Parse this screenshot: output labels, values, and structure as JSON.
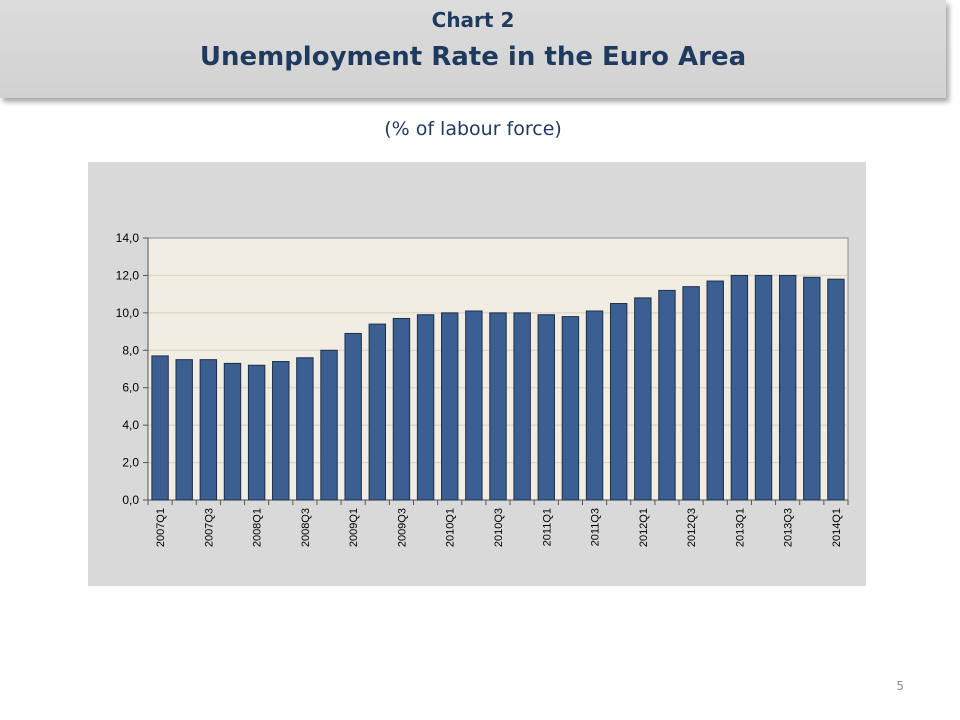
{
  "slide": {
    "title_line1": "Chart 2",
    "title_line2": "Unemployment Rate in the Euro Area",
    "subtitle": "(% of labour force)",
    "page_number": "5"
  },
  "colors": {
    "bar_fill": "#3b5f91",
    "bar_stroke": "#1f2f4a",
    "plot_bg": "#f1ede2",
    "chart_bg": "#d9d9d9",
    "title_text": "#1f3a5f"
  },
  "chart_data": {
    "type": "bar",
    "title": "",
    "xlabel": "",
    "ylabel": "",
    "ylim": [
      0,
      14
    ],
    "y_ticks": [
      "0,0",
      "2,0",
      "4,0",
      "6,0",
      "8,0",
      "10,0",
      "12,0",
      "14,0"
    ],
    "grid": true,
    "legend": "none",
    "categories": [
      "2007Q1",
      "2007Q2",
      "2007Q3",
      "2007Q4",
      "2008Q1",
      "2008Q2",
      "2008Q3",
      "2008Q4",
      "2009Q1",
      "2009Q2",
      "2009Q3",
      "2009Q4",
      "2010Q1",
      "2010Q2",
      "2010Q3",
      "2010Q4",
      "2011Q1",
      "2011Q2",
      "2011Q3",
      "2011Q4",
      "2012Q1",
      "2012Q2",
      "2012Q3",
      "2012Q4",
      "2013Q1",
      "2013Q2",
      "2013Q3",
      "2013Q4",
      "2014Q1"
    ],
    "x_tick_labels": [
      "2007Q1",
      "",
      "2007Q3",
      "",
      "2008Q1",
      "",
      "2008Q3",
      "",
      "2009Q1",
      "",
      "2009Q3",
      "",
      "2010Q1",
      "",
      "2010Q3",
      "",
      "2011Q1",
      "",
      "2011Q3",
      "",
      "2012Q1",
      "",
      "2012Q3",
      "",
      "2013Q1",
      "",
      "2013Q3",
      "",
      "2014Q1"
    ],
    "values": [
      7.7,
      7.5,
      7.5,
      7.3,
      7.2,
      7.4,
      7.6,
      8.0,
      8.9,
      9.4,
      9.7,
      9.9,
      10.0,
      10.1,
      10.0,
      10.0,
      9.9,
      9.8,
      10.1,
      10.5,
      10.8,
      11.2,
      11.4,
      11.7,
      12.0,
      12.0,
      12.0,
      11.9,
      11.8
    ]
  }
}
